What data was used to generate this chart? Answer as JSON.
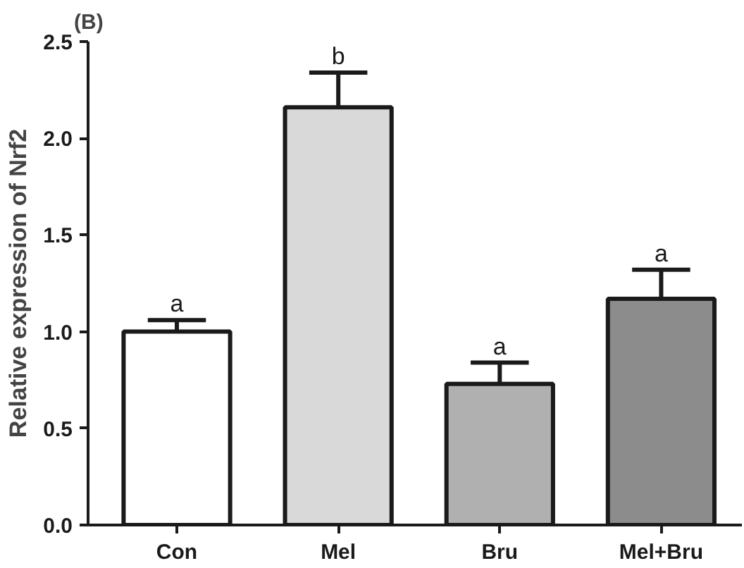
{
  "chart_data": {
    "type": "bar",
    "title": "(B)",
    "ylabel": "Relative expression of Nrf2",
    "categories": [
      "Con",
      "Mel",
      "Bru",
      "Mel+Bru"
    ],
    "values": [
      1.0,
      2.16,
      0.73,
      1.17
    ],
    "errors": [
      0.06,
      0.18,
      0.11,
      0.15
    ],
    "colors": [
      "#ffffff",
      "#d9d9d9",
      "#b0b0b0",
      "#8c8c8c"
    ],
    "ylim": [
      0,
      2.5
    ],
    "yticks": [
      {
        "value": 0,
        "label": "0.0"
      },
      0.5,
      {
        "value": 1,
        "label": "1.0"
      },
      1.5,
      {
        "value": 2,
        "label": "2.0"
      },
      2.5
    ],
    "annotations": [
      "a",
      "b",
      "a",
      "a"
    ]
  }
}
